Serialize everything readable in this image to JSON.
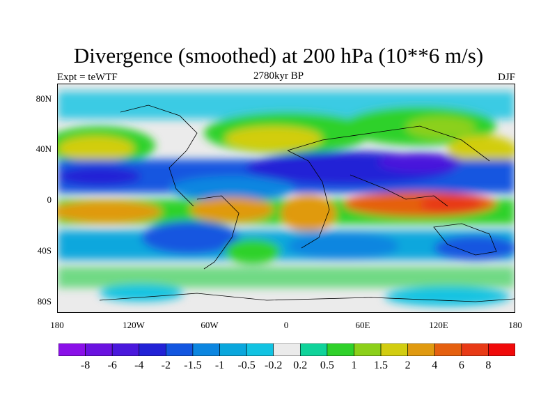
{
  "header": {
    "title": "Divergence (smoothed) at 200 hPa (10**6 m/s)",
    "left": "Expt = teWTF",
    "center": "2780kyr BP",
    "right": "DJF"
  },
  "map": {
    "y_labels": [
      "80N",
      "40N",
      "0",
      "40S",
      "80S"
    ],
    "x_labels": [
      "180",
      "120W",
      "60W",
      "0",
      "60E",
      "120E",
      "180"
    ]
  },
  "colorbar": {
    "labels": [
      "-8",
      "-6",
      "-4",
      "-2",
      "-1.5",
      "-1",
      "-0.5",
      "-0.2",
      "0.2",
      "0.5",
      "1",
      "1.5",
      "2",
      "4",
      "6",
      "8"
    ],
    "colors": [
      "#8A10E8",
      "#6A12E0",
      "#4A18DC",
      "#2222D6",
      "#1356E0",
      "#0C86E0",
      "#0AA7DD",
      "#12C3E2",
      "#EBEBEB",
      "#10D39A",
      "#2FD12A",
      "#8CD01A",
      "#D2CD10",
      "#E09A10",
      "#E5600F",
      "#E83A16",
      "#F00A0A"
    ]
  }
}
